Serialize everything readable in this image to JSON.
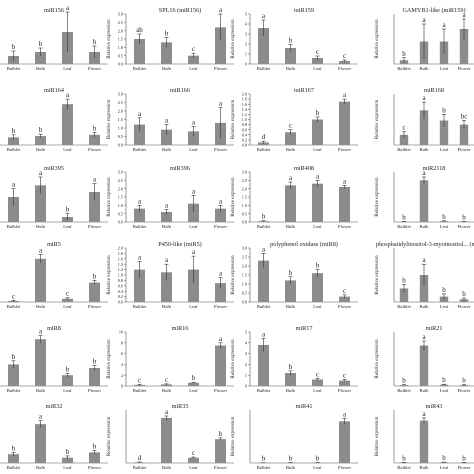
{
  "figure": {
    "ylabel_text": "Relative expression",
    "categories": [
      "Bulblet",
      "Bulb",
      "Leaf",
      "Flower"
    ]
  },
  "chart_data": [
    {
      "type": "bar",
      "title": "miR156",
      "ylabel": "",
      "ylim": [
        0,
        2.5
      ],
      "ticks": [],
      "categories": [
        "Bulblet",
        "Bulb",
        "Leaf",
        "Flower"
      ],
      "values": [
        0.4,
        0.6,
        1.6,
        0.6
      ],
      "errors": [
        0.25,
        0.2,
        1.0,
        0.3
      ],
      "letters": [
        "b",
        "b",
        "a",
        "b"
      ]
    },
    {
      "type": "bar",
      "title": "SPL16 (miR156)",
      "ylabel": "Relative expression",
      "ylim": [
        0,
        3.0
      ],
      "ticks": [
        "0.0",
        "0.5",
        "1.0",
        "1.5",
        "2.0",
        "2.5",
        "3.0"
      ],
      "categories": [
        "Bulblet",
        "Bulb",
        "Leaf",
        "Flower"
      ],
      "values": [
        1.5,
        1.3,
        0.5,
        2.2
      ],
      "errors": [
        0.3,
        0.3,
        0.15,
        0.8
      ],
      "letters": [
        "ab",
        "b",
        "c",
        "a"
      ]
    },
    {
      "type": "bar",
      "title": "miR159",
      "ylabel": "Relative expression",
      "ylim": [
        0,
        5
      ],
      "ticks": [
        "0",
        "1",
        "2",
        "3",
        "4",
        "5"
      ],
      "categories": [
        "Bulblet",
        "Bulb",
        "Leaf",
        "Flower"
      ],
      "values": [
        3.6,
        1.6,
        0.6,
        0.3
      ],
      "errors": [
        0.8,
        0.35,
        0.2,
        0.1
      ],
      "letters": [
        "a",
        "b",
        "c",
        "c"
      ]
    },
    {
      "type": "bar",
      "title": "GAMYB1-like (miR159)",
      "ylabel": "Relative expression",
      "ylim": [
        0,
        2.0
      ],
      "ticks": [],
      "categories": [
        "Bulblet",
        "Bulb",
        "Leaf",
        "Flower"
      ],
      "values": [
        0.15,
        0.9,
        0.9,
        1.4
      ],
      "errors": [
        0.1,
        0.7,
        0.5,
        0.4
      ],
      "letters": [
        "b",
        "a",
        "a",
        "a"
      ]
    },
    {
      "type": "bar",
      "title": "miR164",
      "ylabel": "",
      "ylim": [
        0,
        4
      ],
      "ticks": [],
      "categories": [
        "Bulblet",
        "Bulb",
        "Leaf",
        "Flower"
      ],
      "values": [
        0.6,
        0.7,
        3.2,
        0.8
      ],
      "errors": [
        0.2,
        0.15,
        0.4,
        0.2
      ],
      "letters": [
        "b",
        "b",
        "a",
        "b"
      ]
    },
    {
      "type": "bar",
      "title": "miR166",
      "ylabel": "Relative expression",
      "ylim": [
        0,
        3.0
      ],
      "ticks": [
        "0.0",
        "0.5",
        "1.0",
        "1.5",
        "2.0",
        "2.5",
        "3.0"
      ],
      "categories": [
        "Bulblet",
        "Bulb",
        "Leaf",
        "Flower"
      ],
      "values": [
        1.2,
        0.9,
        0.8,
        1.3
      ],
      "errors": [
        0.4,
        0.3,
        0.3,
        0.9
      ],
      "letters": [
        "a",
        "a",
        "a",
        "a"
      ]
    },
    {
      "type": "bar",
      "title": "miR167",
      "ylabel": "Relative expression",
      "ylim": [
        0,
        2.0
      ],
      "ticks": [
        "0.0",
        "0.2",
        "0.4",
        "0.6",
        "0.8",
        "1.0",
        "1.2",
        "1.4",
        "1.6",
        "1.8",
        "2.0"
      ],
      "categories": [
        "Bulblet",
        "Bulb",
        "Leaf",
        "Flower"
      ],
      "values": [
        0.1,
        0.5,
        1.0,
        1.7
      ],
      "errors": [
        0.05,
        0.1,
        0.1,
        0.1
      ],
      "letters": [
        "d",
        "c",
        "b",
        "a"
      ]
    },
    {
      "type": "bar",
      "title": "miR168",
      "ylabel": "Relative expression",
      "ylim": [
        0,
        2.5
      ],
      "ticks": [],
      "categories": [
        "Bulblet",
        "Bulb",
        "Leaf",
        "Flower"
      ],
      "values": [
        0.5,
        1.7,
        1.2,
        1.0
      ],
      "errors": [
        0.15,
        0.4,
        0.3,
        0.2
      ],
      "letters": [
        "c",
        "a",
        "b",
        "bc"
      ]
    },
    {
      "type": "bar",
      "title": "miR395",
      "ylabel": "",
      "ylim": [
        0,
        3
      ],
      "ticks": [],
      "categories": [
        "Bulblet",
        "Bulb",
        "Leaf",
        "Flower"
      ],
      "values": [
        1.5,
        2.2,
        0.3,
        1.8
      ],
      "errors": [
        0.5,
        0.5,
        0.2,
        0.5
      ],
      "letters": [
        "a",
        "a",
        "b",
        "a"
      ]
    },
    {
      "type": "bar",
      "title": "miR396",
      "ylabel": "Relative expression",
      "ylim": [
        0,
        3.0
      ],
      "ticks": [
        "0.0",
        "0.5",
        "1.0",
        "1.5",
        "2.0",
        "2.5",
        "3.0"
      ],
      "categories": [
        "Bulblet",
        "Bulb",
        "Leaf",
        "Flower"
      ],
      "values": [
        0.8,
        0.6,
        1.1,
        0.8
      ],
      "errors": [
        0.2,
        0.15,
        0.5,
        0.2
      ],
      "letters": [
        "a",
        "a",
        "a",
        "a"
      ]
    },
    {
      "type": "bar",
      "title": "miR408",
      "ylabel": "Relative expression",
      "ylim": [
        0,
        3.0
      ],
      "ticks": [
        "0.0",
        "0.5",
        "1.0",
        "1.5",
        "2.0",
        "2.5",
        "3.0"
      ],
      "categories": [
        "Bulblet",
        "Bulb",
        "Leaf",
        "Flower"
      ],
      "values": [
        0.05,
        2.2,
        2.3,
        2.1
      ],
      "errors": [
        0.03,
        0.2,
        0.2,
        0.1
      ],
      "letters": [
        "b",
        "a",
        "a",
        "a"
      ]
    },
    {
      "type": "bar",
      "title": "miR2118",
      "ylabel": "Relative expression",
      "ylim": [
        0,
        12
      ],
      "ticks": [],
      "categories": [
        "Bulblet",
        "Bulb",
        "Leaf",
        "Flower"
      ],
      "values": [
        0.1,
        10,
        0.2,
        0.1
      ],
      "errors": [
        0.05,
        0.8,
        0.1,
        0.05
      ],
      "letters": [
        "b",
        "a",
        "b",
        "b"
      ]
    },
    {
      "type": "bar",
      "title": "miR5",
      "ylabel": "",
      "ylim": [
        0,
        2.5
      ],
      "ticks": [],
      "categories": [
        "Bulblet",
        "Bulb",
        "Leaf",
        "Flower"
      ],
      "values": [
        0.05,
        2.0,
        0.15,
        0.9
      ],
      "errors": [
        0.03,
        0.2,
        0.05,
        0.1
      ],
      "letters": [
        "c",
        "a",
        "c",
        "b"
      ]
    },
    {
      "type": "bar",
      "title": "P450-like (miR5)",
      "ylabel": "Relative expression",
      "ylim": [
        0,
        2.0
      ],
      "ticks": [
        "0.0",
        "0.2",
        "0.4",
        "0.6",
        "0.8",
        "1.0",
        "1.2",
        "1.4",
        "1.6",
        "1.8",
        "2.0"
      ],
      "categories": [
        "Bulblet",
        "Bulb",
        "Leaf",
        "Flower"
      ],
      "values": [
        1.2,
        1.1,
        1.2,
        0.7
      ],
      "errors": [
        0.3,
        0.3,
        0.5,
        0.2
      ],
      "letters": [
        "a",
        "a",
        "a",
        "a"
      ]
    },
    {
      "type": "bar",
      "title": "polyphenol oxidase (miR8)",
      "ylabel": "Relative expression",
      "ylim": [
        0,
        3.0
      ],
      "ticks": [
        "0.0",
        "0.5",
        "1.0",
        "1.5",
        "2.0",
        "2.5",
        "3.0"
      ],
      "categories": [
        "Bulblet",
        "Bulb",
        "Leaf",
        "Flower"
      ],
      "values": [
        2.3,
        1.2,
        1.6,
        0.3
      ],
      "errors": [
        0.4,
        0.2,
        0.2,
        0.1
      ],
      "letters": [
        "a",
        "b",
        "b",
        "c"
      ]
    },
    {
      "type": "bar",
      "title": "phosphatidylinositol-3-myoinositol... (miR2...)",
      "ylabel": "Relative expression",
      "ylim": [
        0,
        4
      ],
      "ticks": [],
      "categories": [
        "Bulblet",
        "Bulb",
        "Leaf",
        "Flower"
      ],
      "values": [
        1.0,
        2.0,
        0.4,
        0.2
      ],
      "errors": [
        0.3,
        0.8,
        0.2,
        0.1
      ],
      "letters": [
        "b",
        "a",
        "b",
        "b"
      ]
    },
    {
      "type": "bar",
      "title": "miR8",
      "ylabel": "",
      "ylim": [
        0,
        3
      ],
      "ticks": [],
      "categories": [
        "Bulblet",
        "Bulb",
        "Leaf",
        "Flower"
      ],
      "values": [
        1.2,
        2.6,
        0.6,
        1.0
      ],
      "errors": [
        0.2,
        0.2,
        0.1,
        0.15
      ],
      "letters": [
        "b",
        "a",
        "b",
        "b"
      ]
    },
    {
      "type": "bar",
      "title": "miR16",
      "ylabel": "Relative expression",
      "ylim": [
        0,
        10
      ],
      "ticks": [
        "0",
        "2",
        "4",
        "6",
        "8",
        "10"
      ],
      "categories": [
        "Bulblet",
        "Bulb",
        "Leaf",
        "Flower"
      ],
      "values": [
        0.2,
        0.3,
        0.6,
        7.5
      ],
      "errors": [
        0.1,
        0.1,
        0.1,
        0.5
      ],
      "letters": [
        "c",
        "c",
        "b",
        "a"
      ]
    },
    {
      "type": "bar",
      "title": "miR17",
      "ylabel": "Relative expression",
      "ylim": [
        0,
        5
      ],
      "ticks": [
        "0",
        "1",
        "2",
        "3",
        "4",
        "5"
      ],
      "categories": [
        "Bulblet",
        "Bulb",
        "Leaf",
        "Flower"
      ],
      "values": [
        3.8,
        1.2,
        0.6,
        0.5
      ],
      "errors": [
        0.6,
        0.2,
        0.1,
        0.1
      ],
      "letters": [
        "a",
        "b",
        "c",
        "c"
      ]
    },
    {
      "type": "bar",
      "title": "miR21",
      "ylabel": "Relative expression",
      "ylim": [
        0,
        12
      ],
      "ticks": [],
      "categories": [
        "Bulblet",
        "Bulb",
        "Leaf",
        "Flower"
      ],
      "values": [
        0.2,
        9,
        0.3,
        0.2
      ],
      "errors": [
        0.1,
        1,
        0.1,
        0.1
      ],
      "letters": [
        "b",
        "a",
        "b",
        "b"
      ]
    },
    {
      "type": "bar",
      "title": "miR32",
      "ylabel": "",
      "ylim": [
        0,
        3
      ],
      "ticks": [],
      "categories": [
        "Bulblet",
        "Bulb",
        "Leaf",
        "Flower"
      ],
      "values": [
        0.5,
        2.2,
        0.3,
        0.6
      ],
      "errors": [
        0.1,
        0.2,
        0.1,
        0.1
      ],
      "letters": [
        "b",
        "a",
        "b",
        "b"
      ]
    },
    {
      "type": "bar",
      "title": "miR35",
      "ylabel": "Relative expression",
      "ylim": [
        0,
        8
      ],
      "ticks": [],
      "categories": [
        "Bulblet",
        "Bulb",
        "Leaf",
        "Flower"
      ],
      "values": [
        0.1,
        6.8,
        0.8,
        3.6
      ],
      "errors": [
        0.05,
        0.3,
        0.1,
        0.2
      ],
      "letters": [
        "d",
        "a",
        "c",
        "b"
      ]
    },
    {
      "type": "bar",
      "title": "miR41",
      "ylabel": "Relative expression",
      "ylim": [
        0,
        140
      ],
      "ticks": [],
      "categories": [
        "Bulblet",
        "Bulb",
        "Leaf",
        "Flower"
      ],
      "values": [
        0.5,
        1,
        1,
        110
      ],
      "errors": [
        0.2,
        0.3,
        0.3,
        8
      ],
      "letters": [
        "b",
        "b",
        "b",
        "a"
      ]
    },
    {
      "type": "bar",
      "title": "miR43",
      "ylabel": "Relative expression",
      "ylim": [
        0,
        30
      ],
      "ticks": [],
      "categories": [
        "Bulblet",
        "Bulb",
        "Leaf",
        "Flower"
      ],
      "values": [
        0.3,
        24,
        0.4,
        0.3
      ],
      "errors": [
        0.1,
        1.5,
        0.1,
        0.1
      ],
      "letters": [
        "b",
        "a",
        "b",
        "b"
      ]
    }
  ]
}
